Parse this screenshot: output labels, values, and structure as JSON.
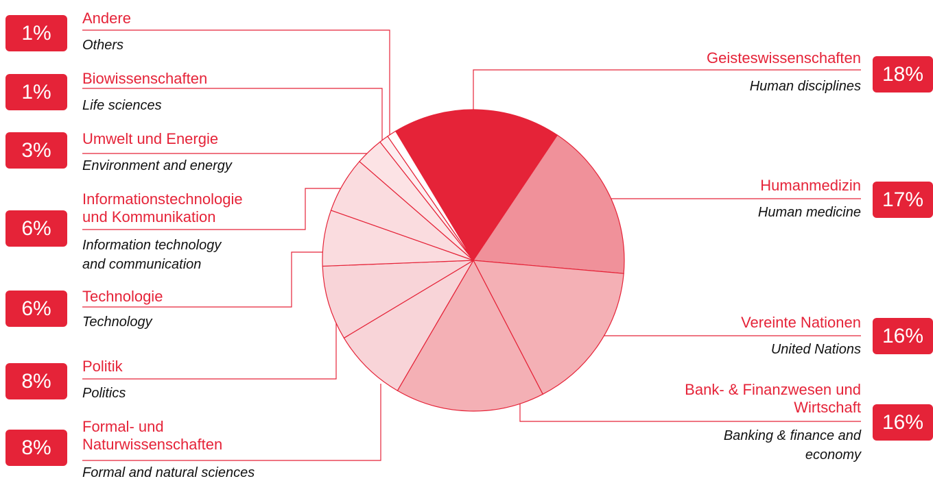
{
  "chart_data": {
    "type": "pie",
    "categories": [
      "Geisteswissenschaften",
      "Humanmedizin",
      "Vereinte Nationen",
      "Bank- & Finanzwesen und Wirtschaft",
      "Formal- und Naturwissenschaften",
      "Politik",
      "Technologie",
      "Informationstechnologie und Kommunikation",
      "Umwelt und Energie",
      "Biowissenschaften",
      "Andere"
    ],
    "translations": [
      "Human disciplines",
      "Human medicine",
      "United Nations",
      "Banking & finance and economy",
      "Formal and natural sciences",
      "Politics",
      "Technology",
      "Information technology and communication",
      "Environment and energy",
      "Life sciences",
      "Others"
    ],
    "values": [
      18,
      17,
      16,
      16,
      8,
      8,
      6,
      6,
      3,
      1,
      1
    ],
    "value_labels": [
      "18%",
      "17%",
      "16%",
      "16%",
      "8%",
      "8%",
      "6%",
      "6%",
      "3%",
      "1%",
      "1%"
    ],
    "colors": [
      "#e52338",
      "#f0919a",
      "#f4b0b5",
      "#f4b0b5",
      "#f8d4d8",
      "#f8d4d8",
      "#fadcdf",
      "#fadcdf",
      "#fce3e5",
      "#fdeef0",
      "#ffffff"
    ]
  }
}
